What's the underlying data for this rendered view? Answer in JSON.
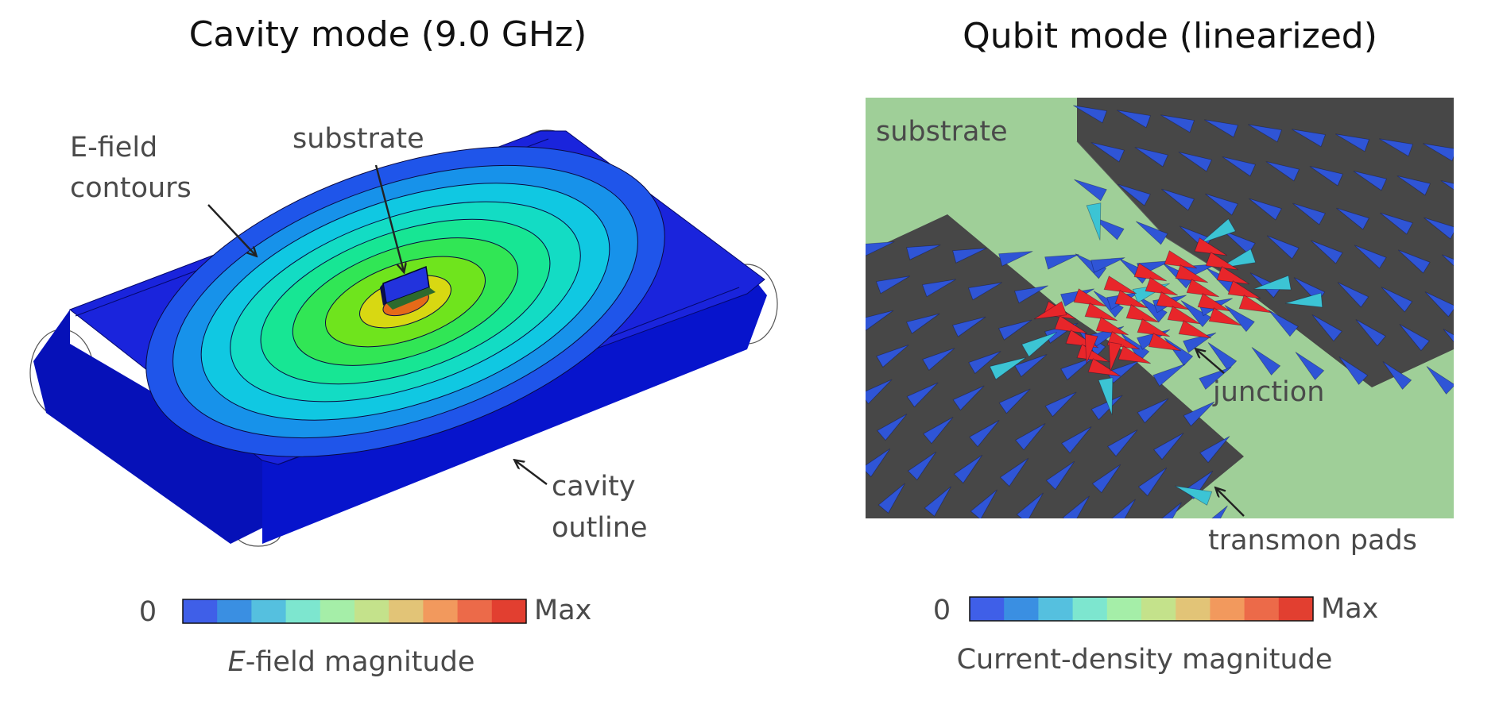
{
  "left_panel": {
    "title": "Cavity mode (9.0 GHz)",
    "labels": {
      "efield_contours_line1": "E-field",
      "efield_contours_line2": "contours",
      "substrate": "substrate",
      "cavity_outline_line1": "cavity",
      "cavity_outline_line2": "outline"
    },
    "colorbar": {
      "min_label": "0",
      "max_label": "Max",
      "caption_italic": "E",
      "caption_rest": "-field magnitude"
    }
  },
  "right_panel": {
    "title": "Qubit mode (linearized)",
    "labels": {
      "substrate": "substrate",
      "junction": "junction",
      "transmon_pads": "transmon pads"
    },
    "colorbar": {
      "min_label": "0",
      "max_label": "Max",
      "caption": "Current-density magnitude"
    }
  },
  "colors": {
    "colorbar_steps": [
      "#3f5fe8",
      "#3a8fe2",
      "#55c0df",
      "#7de6cf",
      "#a5eea8",
      "#c4e28b",
      "#e2c477",
      "#f2995d",
      "#ec6a49",
      "#e23f30"
    ],
    "cavity_body": "#0713cf",
    "cavity_top": "#1b22de",
    "substrate_green": "#9fcf98",
    "pad_gray": "#474747",
    "arrow_blue": "#2f55d6",
    "arrow_cyan": "#3cc4d4",
    "junction_red": "#e8262a"
  }
}
